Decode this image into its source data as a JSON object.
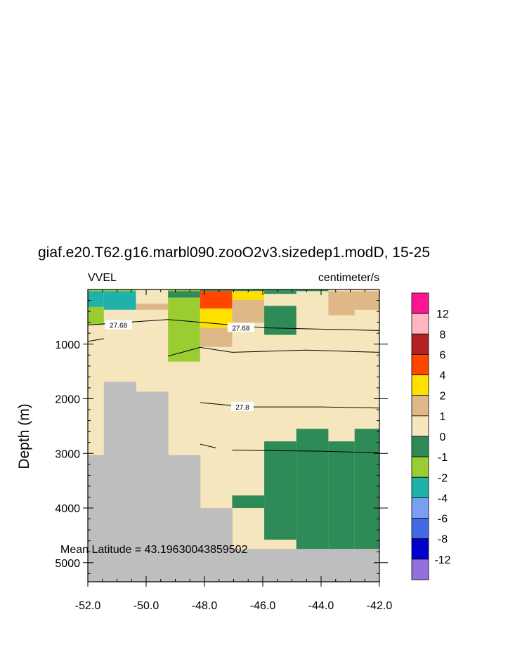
{
  "chart_data": {
    "type": "heatmap",
    "title": "giaf.e20.T62.g16.marbl090.zooO2v3.sizedep1.modD, 15-25",
    "left_label": "VVEL",
    "right_label": "centimeter/s",
    "ylabel": "Depth (m)",
    "xlabel": "",
    "xlim": [
      -52.0,
      -42.0
    ],
    "ylim": [
      5350,
      0
    ],
    "y_inverted": true,
    "x_ticks": [
      "-52.0",
      "-50.0",
      "-48.0",
      "-46.0",
      "-44.0",
      "-42.0"
    ],
    "x_tick_values": [
      -52,
      -50,
      -48,
      -46,
      -44,
      -42
    ],
    "y_ticks": [
      "1000",
      "2000",
      "3000",
      "4000",
      "5000"
    ],
    "y_tick_values": [
      1000,
      2000,
      3000,
      4000,
      5000
    ],
    "annotation": "Mean Latitude = 43.19630043859502",
    "colorbar": {
      "labels": [
        "12",
        "8",
        "6",
        "4",
        "2",
        "1",
        "0",
        "-1",
        "-2",
        "-4",
        "-6",
        "-8",
        "-12"
      ],
      "colors_top_to_bottom": [
        "#ff1493",
        "#ffb6c1",
        "#b22222",
        "#ff4500",
        "#ffe000",
        "#deb887",
        "#f5e6be",
        "#2e8b57",
        "#9acd32",
        "#20b2aa",
        "#7b9ff0",
        "#4169e1",
        "#0000cd",
        "#9370db"
      ]
    },
    "background_color": "#f5e6be",
    "land_color": "#bebebe",
    "land": [
      {
        "x": [
          -52.0,
          -51.45
        ],
        "depth": [
          3030,
          5350
        ]
      },
      {
        "x": [
          -51.45,
          -50.35
        ],
        "depth": [
          1690,
          5350
        ]
      },
      {
        "x": [
          -50.35,
          -49.25
        ],
        "depth": [
          1870,
          5350
        ]
      },
      {
        "x": [
          -49.25,
          -48.15
        ],
        "depth": [
          3030,
          5350
        ]
      },
      {
        "x": [
          -48.15,
          -47.05
        ],
        "depth": [
          4000,
          5350
        ]
      },
      {
        "x": [
          -47.05,
          -45.95
        ],
        "depth": [
          4750,
          5350
        ]
      },
      {
        "x": [
          -45.95,
          -44.85
        ],
        "depth": [
          4750,
          5350
        ]
      },
      {
        "x": [
          -44.85,
          -42.0
        ],
        "depth": [
          4750,
          5350
        ]
      }
    ],
    "cells": [
      {
        "x": [
          -52.0,
          -51.45
        ],
        "depth": [
          0,
          30
        ],
        "value": -1.5
      },
      {
        "x": [
          -52.0,
          -51.45
        ],
        "depth": [
          30,
          320
        ],
        "value": -3
      },
      {
        "x": [
          -52.0,
          -51.45
        ],
        "depth": [
          320,
          650
        ],
        "value": -1.5
      },
      {
        "x": [
          -51.45,
          -50.35
        ],
        "depth": [
          0,
          30
        ],
        "value": -1.5
      },
      {
        "x": [
          -51.45,
          -50.35
        ],
        "depth": [
          30,
          370
        ],
        "value": -3
      },
      {
        "x": [
          -50.35,
          -49.25
        ],
        "depth": [
          260,
          370
        ],
        "value": 1.5
      },
      {
        "x": [
          -49.25,
          -48.15
        ],
        "depth": [
          0,
          30
        ],
        "value": -1.5
      },
      {
        "x": [
          -49.25,
          -48.15
        ],
        "depth": [
          30,
          70
        ],
        "value": -0.5
      },
      {
        "x": [
          -49.25,
          -48.15
        ],
        "depth": [
          70,
          150
        ],
        "value": -0.5
      },
      {
        "x": [
          -49.25,
          -48.15
        ],
        "depth": [
          150,
          1320
        ],
        "value": -1.5
      },
      {
        "x": [
          -48.15,
          -47.05
        ],
        "depth": [
          0,
          30
        ],
        "value": -0.5
      },
      {
        "x": [
          -48.15,
          -47.05
        ],
        "depth": [
          30,
          350
        ],
        "value": 5
      },
      {
        "x": [
          -48.15,
          -47.05
        ],
        "depth": [
          350,
          700
        ],
        "value": 3
      },
      {
        "x": [
          -48.15,
          -47.05
        ],
        "depth": [
          700,
          1050
        ],
        "value": 1.5
      },
      {
        "x": [
          -47.05,
          -45.95
        ],
        "depth": [
          0,
          30
        ],
        "value": -0.5
      },
      {
        "x": [
          -47.05,
          -45.95
        ],
        "depth": [
          30,
          190
        ],
        "value": 3
      },
      {
        "x": [
          -47.05,
          -45.95
        ],
        "depth": [
          190,
          610
        ],
        "value": 1.5
      },
      {
        "x": [
          -45.95,
          -44.85
        ],
        "depth": [
          0,
          30
        ],
        "value": -0.5
      },
      {
        "x": [
          -45.95,
          -44.85
        ],
        "depth": [
          30,
          80
        ],
        "value": -0.5
      },
      {
        "x": [
          -45.95,
          -44.85
        ],
        "depth": [
          300,
          830
        ],
        "value": -0.5
      },
      {
        "x": [
          -44.85,
          -43.75
        ],
        "depth": [
          0,
          30
        ],
        "value": -0.5
      },
      {
        "x": [
          -43.75,
          -42.85
        ],
        "depth": [
          30,
          470
        ],
        "value": 1.5
      },
      {
        "x": [
          -42.85,
          -42.0
        ],
        "depth": [
          30,
          370
        ],
        "value": 1.5
      },
      {
        "x": [
          -45.95,
          -44.85
        ],
        "depth": [
          2780,
          4580
        ],
        "value": -0.5
      },
      {
        "x": [
          -44.85,
          -43.75
        ],
        "depth": [
          2550,
          4750
        ],
        "value": -0.5
      },
      {
        "x": [
          -43.75,
          -42.85
        ],
        "depth": [
          2780,
          4750
        ],
        "value": -0.5
      },
      {
        "x": [
          -42.85,
          -42.0
        ],
        "depth": [
          2550,
          4750
        ],
        "value": -0.5
      },
      {
        "x": [
          -47.05,
          -45.95
        ],
        "depth": [
          3770,
          4000
        ],
        "value": -0.5
      }
    ],
    "contours": [
      {
        "label": "27.68",
        "segments": [
          [
            [
              -52.0,
              650
            ],
            [
              -49.25,
              550
            ],
            [
              -48.15,
              600
            ],
            [
              -46.0,
              700
            ],
            [
              -42.0,
              750
            ]
          ],
          [
            [
              -52.0,
              950
            ],
            [
              -51.45,
              900
            ]
          ]
        ],
        "label_at": [
          [
            -50.95,
            650
          ],
          [
            -46.75,
            700
          ]
        ]
      },
      {
        "label": "",
        "segments": [
          [
            [
              -49.25,
              1220
            ],
            [
              -48.15,
              1060
            ],
            [
              -47.05,
              1150
            ],
            [
              -44.5,
              1110
            ],
            [
              -42.0,
              1150
            ]
          ]
        ],
        "label_at": []
      },
      {
        "label": "27.8",
        "segments": [
          [
            [
              -48.15,
              2070
            ],
            [
              -46.5,
              2150
            ],
            [
              -44.0,
              2150
            ],
            [
              -42.0,
              2170
            ]
          ]
        ],
        "label_at": [
          [
            -46.7,
            2150
          ]
        ]
      },
      {
        "label": "",
        "segments": [
          [
            [
              -48.15,
              2830
            ],
            [
              -47.6,
              2900
            ]
          ],
          [
            [
              -47.05,
              2940
            ],
            [
              -44.0,
              2960
            ],
            [
              -42.0,
              2990
            ]
          ]
        ],
        "label_at": []
      }
    ]
  }
}
